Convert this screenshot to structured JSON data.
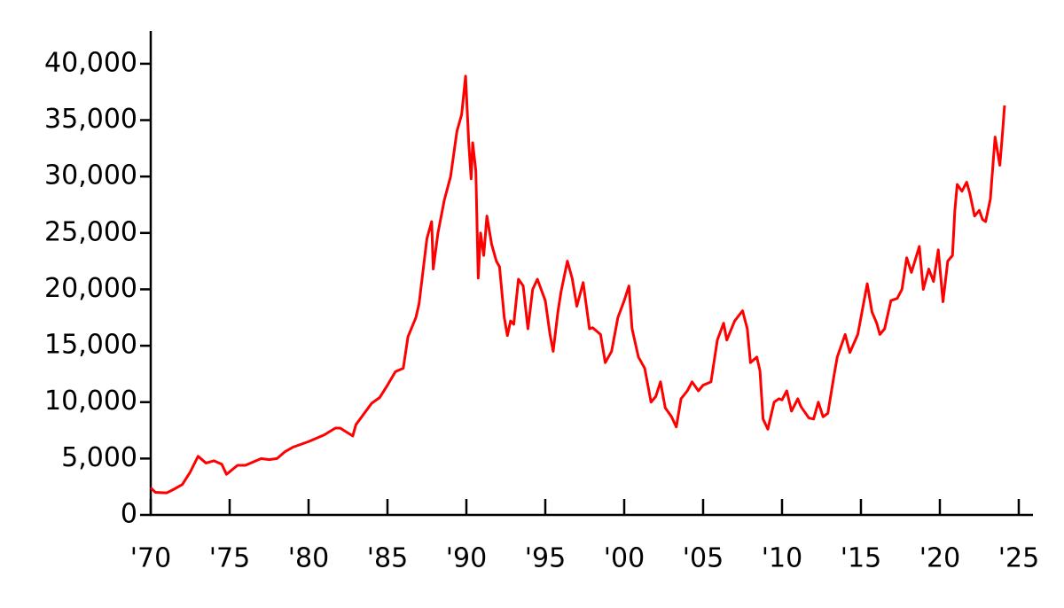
{
  "chart_data": {
    "type": "line",
    "x": [
      1970.0,
      1970.3,
      1971.0,
      1971.5,
      1972.0,
      1972.5,
      1973.0,
      1973.5,
      1974.0,
      1974.5,
      1974.8,
      1975.5,
      1976.0,
      1977.0,
      1977.5,
      1978.0,
      1978.5,
      1979.0,
      1980.0,
      1981.0,
      1981.7,
      1982.0,
      1982.8,
      1983.0,
      1984.0,
      1984.5,
      1985.0,
      1985.5,
      1986.0,
      1986.3,
      1986.8,
      1987.0,
      1987.5,
      1987.8,
      1987.9,
      1988.2,
      1988.6,
      1989.0,
      1989.4,
      1989.7,
      1989.95,
      1990.15,
      1990.3,
      1990.4,
      1990.6,
      1990.75,
      1990.9,
      1991.1,
      1991.3,
      1991.6,
      1991.9,
      1992.1,
      1992.4,
      1992.6,
      1992.8,
      1993.0,
      1993.3,
      1993.6,
      1993.9,
      1994.2,
      1994.5,
      1995.0,
      1995.3,
      1995.5,
      1995.8,
      1996.0,
      1996.4,
      1996.7,
      1997.0,
      1997.4,
      1997.8,
      1998.0,
      1998.5,
      1998.8,
      1999.2,
      1999.6,
      2000.0,
      2000.3,
      2000.5,
      2000.9,
      2001.3,
      2001.7,
      2002.0,
      2002.3,
      2002.6,
      2003.0,
      2003.3,
      2003.6,
      2004.0,
      2004.3,
      2004.7,
      2005.0,
      2005.5,
      2005.9,
      2006.3,
      2006.5,
      2007.0,
      2007.5,
      2007.8,
      2008.0,
      2008.4,
      2008.6,
      2008.8,
      2009.1,
      2009.5,
      2009.8,
      2010.0,
      2010.3,
      2010.6,
      2011.0,
      2011.2,
      2011.7,
      2012.0,
      2012.3,
      2012.6,
      2012.9,
      2013.3,
      2013.5,
      2013.9,
      2014.0,
      2014.3,
      2014.8,
      2015.0,
      2015.4,
      2015.7,
      2016.0,
      2016.2,
      2016.5,
      2016.9,
      2017.3,
      2017.6,
      2017.9,
      2018.2,
      2018.7,
      2018.95,
      2019.3,
      2019.6,
      2019.9,
      2020.2,
      2020.5,
      2020.8,
      2020.95,
      2021.1,
      2021.4,
      2021.7,
      2021.9,
      2022.2,
      2022.5,
      2022.7,
      2022.9,
      2023.2,
      2023.5,
      2023.8,
      2023.95,
      2024.1
    ],
    "series": [
      {
        "color": "#ff0000",
        "values": [
          2400,
          2000,
          1950,
          2300,
          2700,
          3800,
          5200,
          4600,
          4800,
          4500,
          3600,
          4400,
          4400,
          5000,
          4900,
          5000,
          5600,
          6000,
          6500,
          7100,
          7700,
          7700,
          7000,
          8000,
          9900,
          10400,
          11500,
          12700,
          13000,
          15800,
          17500,
          18700,
          24500,
          26000,
          21800,
          25000,
          27900,
          30000,
          34000,
          35500,
          38900,
          33000,
          29800,
          33000,
          30500,
          21000,
          25000,
          23000,
          26500,
          24000,
          22500,
          22000,
          17500,
          15900,
          17200,
          16900,
          20900,
          20300,
          16500,
          20000,
          20900,
          19000,
          16000,
          14500,
          18000,
          19800,
          22500,
          21000,
          18500,
          20600,
          16500,
          16600,
          16000,
          13500,
          14500,
          17500,
          19000,
          20300,
          16500,
          14000,
          13000,
          10000,
          10500,
          11800,
          9500,
          8700,
          7800,
          10300,
          11000,
          11800,
          11000,
          11500,
          11800,
          15500,
          17000,
          15500,
          17200,
          18100,
          16500,
          13500,
          14000,
          12800,
          8500,
          7600,
          10000,
          10300,
          10200,
          11000,
          9200,
          10300,
          9600,
          8600,
          8500,
          10000,
          8700,
          9000,
          12400,
          14000,
          15600,
          16000,
          14400,
          16000,
          17500,
          20500,
          18000,
          17000,
          16000,
          16500,
          19000,
          19200,
          20000,
          22800,
          21500,
          23800,
          20000,
          21800,
          20700,
          23500,
          18900,
          22500,
          23000,
          27000,
          29300,
          28700,
          29500,
          28500,
          26500,
          27000,
          26200,
          26000,
          28000,
          33500,
          31000,
          33500,
          36300
        ]
      }
    ],
    "xlim": [
      1970,
      2025.9
    ],
    "ylim": [
      0,
      42900
    ],
    "xticks": [
      {
        "value": 1970,
        "label": "'70"
      },
      {
        "value": 1975,
        "label": "'75"
      },
      {
        "value": 1980,
        "label": "'80"
      },
      {
        "value": 1985,
        "label": "'85"
      },
      {
        "value": 1990,
        "label": "'90"
      },
      {
        "value": 1995,
        "label": "'95"
      },
      {
        "value": 2000,
        "label": "'00"
      },
      {
        "value": 2005,
        "label": "'05"
      },
      {
        "value": 2010,
        "label": "'10"
      },
      {
        "value": 2015,
        "label": "'15"
      },
      {
        "value": 2020,
        "label": "'20"
      },
      {
        "value": 2025,
        "label": "'25"
      }
    ],
    "yticks": [
      0,
      {
        "value": 5000,
        "label": "5,000"
      },
      {
        "value": 10000,
        "label": "10,000"
      },
      {
        "value": 15000,
        "label": "15,000"
      },
      {
        "value": 20000,
        "label": "20,000"
      },
      {
        "value": 25000,
        "label": "25,000"
      },
      {
        "value": 30000,
        "label": "30,000"
      },
      {
        "value": 35000,
        "label": "35,000"
      },
      {
        "value": 40000,
        "label": "40,000"
      }
    ],
    "grid": false
  }
}
